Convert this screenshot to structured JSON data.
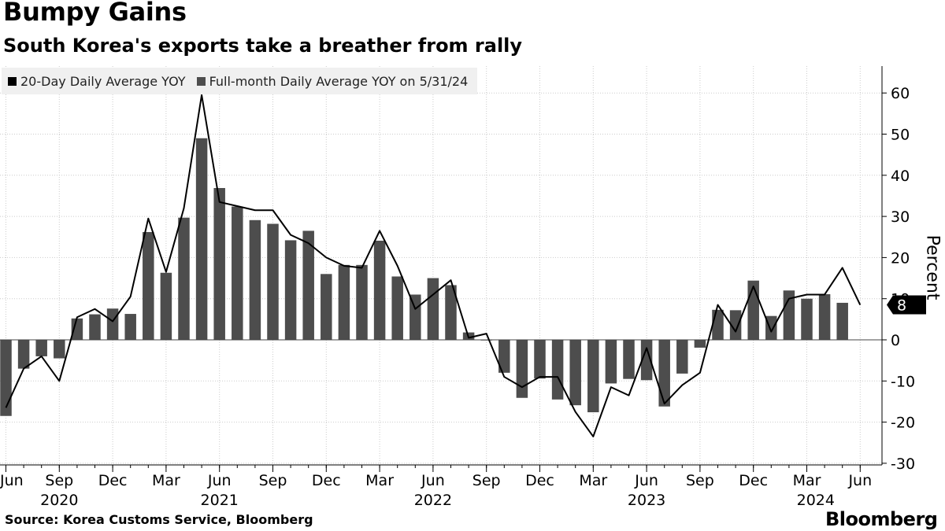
{
  "title": "Bumpy Gains",
  "subtitle": "South Korea's exports take a breather from rally",
  "source": "Source: Korea Customs Service, Bloomberg",
  "brand": "Bloomberg",
  "colors": {
    "bar": "#4d4d4d",
    "line": "#000000",
    "grid": "#cccccc",
    "legend_bg": "#f0f0f0"
  },
  "chart_data": {
    "type": "bar",
    "title": "Bumpy Gains",
    "ylabel": "Percent",
    "xlabel": "",
    "ylim": [
      -30,
      67
    ],
    "yticks": [
      -30,
      -20,
      -10,
      0,
      10,
      20,
      30,
      40,
      50,
      60
    ],
    "ytick_labels": [
      "-30",
      "-20",
      "-10",
      "0",
      "10",
      "20",
      "30",
      "40",
      "50",
      "60"
    ],
    "grid": true,
    "legend_position": "top-left",
    "categories": [
      "Jun 2020",
      "Jul 2020",
      "Aug 2020",
      "Sep 2020",
      "Oct 2020",
      "Nov 2020",
      "Dec 2020",
      "Jan 2021",
      "Feb 2021",
      "Mar 2021",
      "Apr 2021",
      "May 2021",
      "Jun 2021",
      "Jul 2021",
      "Aug 2021",
      "Sep 2021",
      "Oct 2021",
      "Nov 2021",
      "Dec 2021",
      "Jan 2022",
      "Feb 2022",
      "Mar 2022",
      "Apr 2022",
      "May 2022",
      "Jun 2022",
      "Jul 2022",
      "Aug 2022",
      "Sep 2022",
      "Oct 2022",
      "Nov 2022",
      "Dec 2022",
      "Jan 2023",
      "Feb 2023",
      "Mar 2023",
      "Apr 2023",
      "May 2023",
      "Jun 2023",
      "Jul 2023",
      "Aug 2023",
      "Sep 2023",
      "Oct 2023",
      "Nov 2023",
      "Dec 2023",
      "Jan 2024",
      "Feb 2024",
      "Mar 2024",
      "Apr 2024",
      "May 2024",
      "Jun 2024"
    ],
    "x_tick_labels": [
      {
        "index": 0,
        "label": "Jun"
      },
      {
        "index": 3,
        "label": "Sep"
      },
      {
        "index": 6,
        "label": "Dec"
      },
      {
        "index": 9,
        "label": "Mar"
      },
      {
        "index": 12,
        "label": "Jun"
      },
      {
        "index": 15,
        "label": "Sep"
      },
      {
        "index": 18,
        "label": "Dec"
      },
      {
        "index": 21,
        "label": "Mar"
      },
      {
        "index": 24,
        "label": "Jun"
      },
      {
        "index": 27,
        "label": "Sep"
      },
      {
        "index": 30,
        "label": "Dec"
      },
      {
        "index": 33,
        "label": "Mar"
      },
      {
        "index": 36,
        "label": "Jun"
      },
      {
        "index": 39,
        "label": "Sep"
      },
      {
        "index": 42,
        "label": "Dec"
      },
      {
        "index": 45,
        "label": "Mar"
      },
      {
        "index": 48,
        "label": "Jun"
      }
    ],
    "year_labels": [
      {
        "index": 3,
        "label": "2020"
      },
      {
        "index": 12,
        "label": "2021"
      },
      {
        "index": 24,
        "label": "2022"
      },
      {
        "index": 36,
        "label": "2023"
      },
      {
        "index": 45.5,
        "label": "2024"
      }
    ],
    "series": [
      {
        "name": "20-Day Daily Average YOY",
        "type": "line",
        "values": [
          -16.5,
          -7,
          -4,
          -10,
          5.5,
          7.5,
          4.5,
          10.5,
          29.5,
          16.5,
          32,
          59.5,
          33.5,
          32.5,
          31.5,
          31.5,
          25.5,
          23.5,
          20,
          18,
          17.5,
          26.5,
          18,
          7.5,
          11,
          14.5,
          0.5,
          1.5,
          -9,
          -11.5,
          -9,
          -9,
          -17.5,
          -23.5,
          -11.5,
          -13.5,
          -2,
          -15.5,
          -11,
          -8,
          8.5,
          2,
          13,
          2,
          10,
          11,
          11,
          17.5,
          8.5
        ]
      },
      {
        "name": "Full-month Daily Average YOY on 5/31/24",
        "type": "bar",
        "values": [
          -18.5,
          -7,
          -4,
          -4.5,
          5.2,
          6.2,
          7.6,
          6.3,
          26.2,
          16.3,
          29.7,
          49,
          36.9,
          32.4,
          29.1,
          28.2,
          24.2,
          26.5,
          16,
          18.2,
          18.2,
          24.1,
          15.4,
          11,
          15,
          13.3,
          1.8,
          0,
          -8,
          -14.1,
          -9.4,
          -14.5,
          -15.9,
          -17.6,
          -10.6,
          -9.5,
          -9.8,
          -16.2,
          -8.2,
          -1.9,
          7.3,
          7.2,
          14.4,
          5.8,
          12,
          10,
          11.1,
          9,
          null
        ]
      }
    ],
    "annotation": {
      "label": "8",
      "value": 8.5,
      "series": "20-Day Daily Average YOY"
    }
  }
}
